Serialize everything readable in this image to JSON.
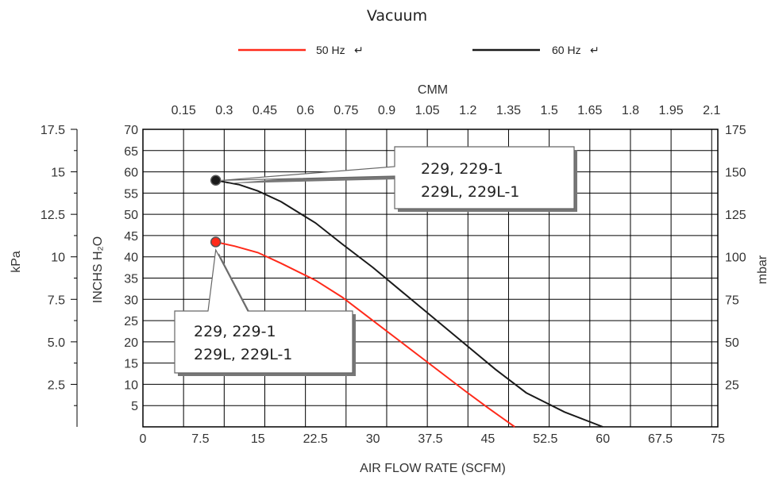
{
  "chart_data": {
    "type": "line",
    "title": "Vacuum",
    "xlabel": "AIR FLOW RATE (SCFM)",
    "xlabel_top": "CMM",
    "ylabel": "INCHS H₂O",
    "ylabel_left_outer": "kPa",
    "ylabel_right": "mbar",
    "xlim": [
      0,
      75
    ],
    "ylim": [
      0,
      70
    ],
    "grid": true,
    "legend_position": "top",
    "x_ticks": [
      "0",
      "7.5",
      "15",
      "22.5",
      "30",
      "37.5",
      "45",
      "52.5",
      "60",
      "67.5",
      "75"
    ],
    "x_top_ticks": [
      "0.15",
      "0.3",
      "0.45",
      "0.6",
      "0.75",
      "0.9",
      "1.05",
      "1.2",
      "1.35",
      "1.5",
      "1.65",
      "1.8",
      "1.95",
      "2.1"
    ],
    "y_ticks": [
      "5",
      "10",
      "15",
      "20",
      "25",
      "30",
      "35",
      "40",
      "45",
      "50",
      "55",
      "60",
      "65",
      "70"
    ],
    "kpa_ticks": [
      "2.5",
      "5.0",
      "7.5",
      "10",
      "12.5",
      "15",
      "17.5"
    ],
    "mbar_ticks": [
      "25",
      "50",
      "75",
      "100",
      "125",
      "150",
      "175"
    ],
    "series": [
      {
        "name": "50 Hz",
        "color": "#ff2a1a",
        "points": [
          [
            9.5,
            43.5
          ],
          [
            12,
            42.5
          ],
          [
            15,
            41
          ],
          [
            18,
            38.5
          ],
          [
            22.5,
            34.5
          ],
          [
            26,
            30.5
          ],
          [
            30,
            25
          ],
          [
            34,
            19.5
          ],
          [
            38,
            14
          ],
          [
            42,
            8.5
          ],
          [
            45,
            4.5
          ],
          [
            48.5,
            0
          ]
        ]
      },
      {
        "name": "60 Hz",
        "color": "#1a1a1a",
        "points": [
          [
            9.5,
            58
          ],
          [
            12.5,
            57
          ],
          [
            15,
            55.5
          ],
          [
            18,
            53
          ],
          [
            22.5,
            48
          ],
          [
            26,
            43
          ],
          [
            30,
            37.5
          ],
          [
            34,
            31.5
          ],
          [
            38,
            25.5
          ],
          [
            42,
            19.5
          ],
          [
            46,
            13.5
          ],
          [
            50,
            8
          ],
          [
            55,
            3.5
          ],
          [
            60,
            0
          ]
        ]
      }
    ],
    "annotations": [
      {
        "target_series": "60 Hz",
        "lines": [
          "229, 229-1",
          "229L, 229L-1"
        ]
      },
      {
        "target_series": "50 Hz",
        "lines": [
          "229, 229-1",
          "229L, 229L-1"
        ]
      }
    ]
  }
}
